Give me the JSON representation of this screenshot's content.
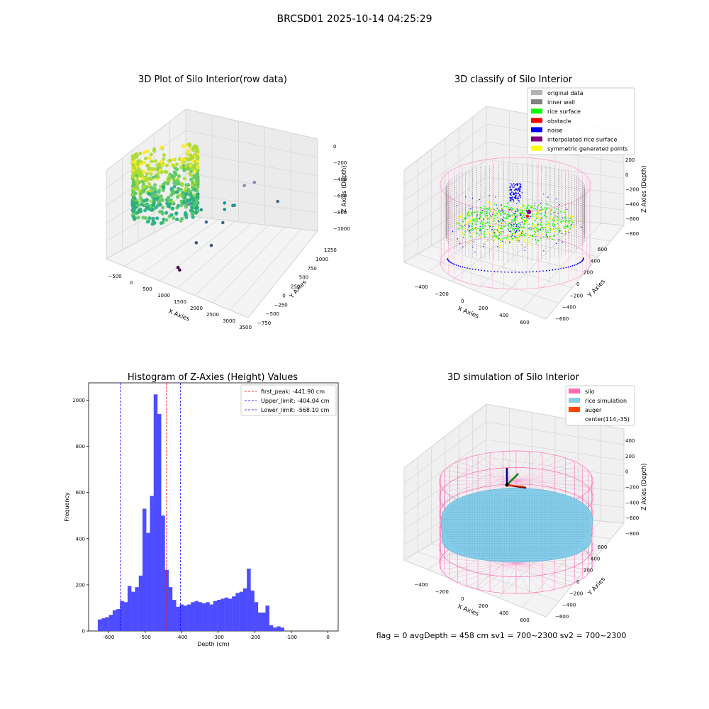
{
  "suptitle": "BRCSD01 2025-10-14 04:25:29",
  "footer": "flag = 0     avgDepth = 458 cm  sv1 = 700~2300  sv2 = 700~2300",
  "chart_data": [
    {
      "type": "scatter",
      "title": "3D Plot of Silo Interior(row data)",
      "xlabel": "X Axies",
      "ylabel": "Y Axies",
      "zlabel": "Z Axies (Depth)",
      "x_ticks": [
        "−500",
        "0",
        "500",
        "1000",
        "1500",
        "2000",
        "2500",
        "3000",
        "3500"
      ],
      "y_ticks": [
        "−750",
        "−500",
        "−250",
        "0",
        "250",
        "500",
        "750",
        "1000",
        "1250"
      ],
      "z_ticks": [
        "0",
        "−200",
        "−400",
        "−600",
        "−800",
        "−1000"
      ],
      "xlim": [
        -650,
        3600
      ],
      "ylim": [
        -800,
        1300
      ],
      "zlim": [
        -1100,
        50
      ],
      "colormap": "viridis",
      "outliers": [
        {
          "x": 1200,
          "y": -200,
          "z": -500
        },
        {
          "x": 1500,
          "y": -100,
          "z": -560
        },
        {
          "x": 1900,
          "y": 200,
          "z": -560
        },
        {
          "x": 1950,
          "y": 150,
          "z": -600
        },
        {
          "x": 2000,
          "y": 350,
          "z": -640
        },
        {
          "x": 2100,
          "y": 600,
          "z": -520
        },
        {
          "x": 2300,
          "y": 700,
          "z": -500
        },
        {
          "x": 1600,
          "y": -50,
          "z": -700
        },
        {
          "x": 1900,
          "y": 150,
          "z": -750
        },
        {
          "x": 2100,
          "y": 300,
          "z": -600
        },
        {
          "x": 2800,
          "y": 900,
          "z": -720
        },
        {
          "x": 1500,
          "y": -250,
          "z": -850
        },
        {
          "x": 1800,
          "y": -100,
          "z": -900
        },
        {
          "x": 1200,
          "y": -500,
          "z": -1050
        },
        {
          "x": 1250,
          "y": -500,
          "z": -1070
        }
      ]
    },
    {
      "type": "scatter",
      "title": "3D classify of Silo Interior",
      "xlabel": "X Axies",
      "ylabel": "Y Axies",
      "zlabel": "Z Axies (Depth)",
      "x_ticks": [
        "−400",
        "−200",
        "0",
        "200",
        "400",
        "600"
      ],
      "y_ticks": [
        "−600",
        "−400",
        "−200",
        "0",
        "200",
        "400",
        "600"
      ],
      "z_ticks": [
        "200",
        "0",
        "−200",
        "−400",
        "−600",
        "−800"
      ],
      "xlim": [
        -550,
        750
      ],
      "ylim": [
        -650,
        650
      ],
      "zlim": [
        -900,
        400
      ],
      "legend": [
        {
          "label": "original data",
          "color": "#b3b3b3"
        },
        {
          "label": "inner wall",
          "color": "#808080"
        },
        {
          "label": "rice surface",
          "color": "#00ff00"
        },
        {
          "label": "obstacle",
          "color": "#ff0000"
        },
        {
          "label": "noise",
          "color": "#0000ff"
        },
        {
          "label": "interpolated rice surface",
          "color": "#800080"
        },
        {
          "label": "symmetric generated points",
          "color": "#ffff00"
        }
      ]
    },
    {
      "type": "bar",
      "title": "Histogram of Z-Axies (Height) Values",
      "xlabel": "Depth (cm)",
      "ylabel": "Frequency",
      "bar_color": "#4d4dff",
      "bin_start": -630,
      "bin_width": 10.2,
      "values": [
        50,
        55,
        60,
        70,
        90,
        95,
        130,
        125,
        195,
        170,
        190,
        240,
        530,
        425,
        585,
        1025,
        940,
        500,
        265,
        190,
        135,
        105,
        115,
        110,
        115,
        125,
        130,
        125,
        120,
        125,
        115,
        130,
        135,
        140,
        145,
        140,
        150,
        165,
        170,
        185,
        270,
        175,
        125,
        80,
        80,
        110,
        25,
        15,
        20,
        15
      ],
      "xlim": [
        -655,
        28
      ],
      "ylim": [
        0,
        1075
      ],
      "x_ticks": [
        -600,
        -500,
        -400,
        -300,
        -200,
        -100,
        0
      ],
      "y_ticks": [
        0,
        200,
        400,
        600,
        800,
        1000
      ],
      "vlines": [
        {
          "x": -441.9,
          "color": "#ff0000",
          "label": "first_peak: -441.90 cm"
        },
        {
          "x": -404.04,
          "color": "#0000ff",
          "label": "Upper_limit: -404.04 cm"
        },
        {
          "x": -568.1,
          "color": "#0000ff",
          "label": "Lower_limit: -568.10 cm"
        }
      ]
    },
    {
      "type": "scatter",
      "title": "3D simulation of Silo Interior",
      "xlabel": "X Axies",
      "ylabel": "Y Axies",
      "zlabel": "Z Axies (Depth)",
      "x_ticks": [
        "−400",
        "−200",
        "0",
        "200",
        "400",
        "600"
      ],
      "y_ticks": [
        "−600",
        "−400",
        "−200",
        "0",
        "200",
        "400",
        "600"
      ],
      "z_ticks": [
        "400",
        "200",
        "0",
        "−200",
        "−400",
        "−600",
        "−800"
      ],
      "xlim": [
        -550,
        750
      ],
      "ylim": [
        -650,
        650
      ],
      "zlim": [
        -950,
        500
      ],
      "legend": [
        {
          "label": "silo",
          "color": "#ff69b4"
        },
        {
          "label": "rice simulation",
          "color": "#87ceeb"
        },
        {
          "label": "auger",
          "color": "#ff4500"
        },
        {
          "label": "center(114,-35)",
          "color": ""
        }
      ]
    }
  ]
}
